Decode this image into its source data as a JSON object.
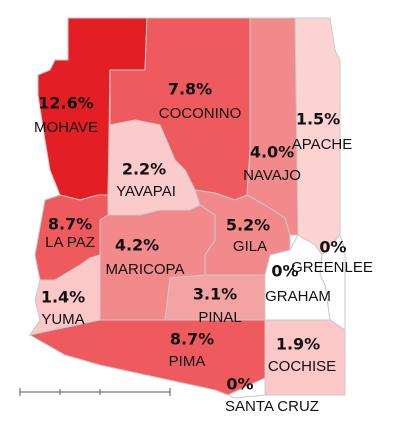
{
  "chart_data": {
    "type": "choropleth",
    "categories": [
      "MOHAVE",
      "COCONINO",
      "APACHE",
      "NAVAJO",
      "YAVAPAI",
      "LA PAZ",
      "GILA",
      "MARICOPA",
      "GREENLEE",
      "GRAHAM",
      "YUMA",
      "PINAL",
      "PIMA",
      "COCHISE",
      "SANTA CRUZ"
    ],
    "values": [
      12.6,
      7.8,
      1.5,
      4.0,
      2.2,
      8.7,
      5.2,
      4.2,
      0,
      0,
      1.4,
      3.1,
      8.7,
      1.9,
      0
    ],
    "value_labels": [
      "12.6%",
      "7.8%",
      "1.5%",
      "4.0%",
      "2.2%",
      "8.7%",
      "5.2%",
      "4.2%",
      "0%",
      "0%",
      "1.4%",
      "3.1%",
      "8.7%",
      "1.9%",
      "0%"
    ],
    "colors": [
      "#e31e24",
      "#ee5a5e",
      "#fcd3d3",
      "#f28a8b",
      "#fbcaca",
      "#ee5a5e",
      "#f28a8b",
      "#f28a8b",
      "#ffffff",
      "#ffffff",
      "#fbc7c7",
      "#f4a3a3",
      "#ee5a5e",
      "#fbc7c7",
      "#ffffff"
    ]
  }
}
